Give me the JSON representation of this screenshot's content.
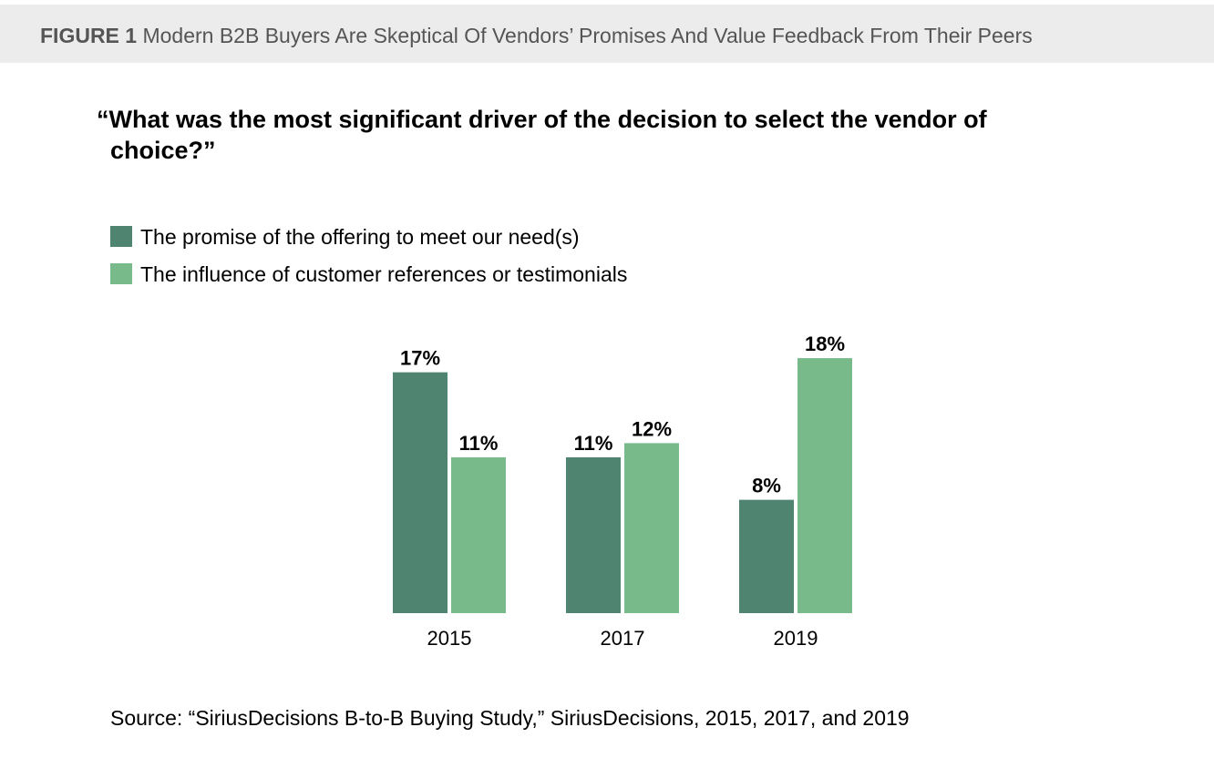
{
  "figure": {
    "label": "FIGURE 1",
    "title": "Modern B2B Buyers Are Skeptical Of Vendors’ Promises And Value Feedback From Their Peers"
  },
  "question": {
    "line1": "“What was the most significant driver of the decision to select the vendor of",
    "line2": "choice?”"
  },
  "colors": {
    "series1": "#4e8470",
    "series2": "#78ba8a"
  },
  "chart_data": {
    "type": "bar",
    "categories": [
      "2015",
      "2017",
      "2019"
    ],
    "series": [
      {
        "name": "The promise of the offering to meet our need(s)",
        "values": [
          17,
          11,
          8
        ],
        "labels": [
          "17%",
          "11%",
          "8%"
        ]
      },
      {
        "name": "The influence of customer references or testimonials",
        "values": [
          11,
          12,
          18
        ],
        "labels": [
          "11%",
          "12%",
          "18%"
        ]
      }
    ],
    "unit": "%",
    "legend_position": "top-left",
    "grid": false
  },
  "source": "Source: “SiriusDecisions B-to-B Buying Study,” SiriusDecisions, 2015, 2017, and 2019"
}
